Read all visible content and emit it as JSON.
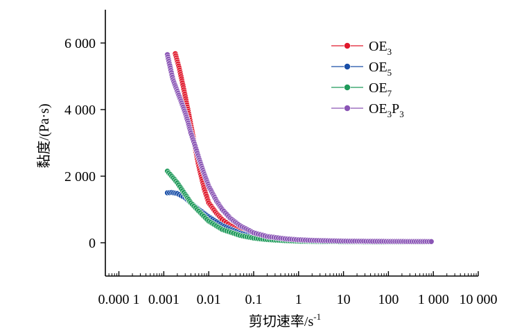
{
  "chart_data": {
    "type": "scatter",
    "xlabel": "剪切速率/s",
    "xlabel_sup": "-1",
    "ylabel": "黏度/(Pa·s)",
    "x_scale": "log",
    "xlim": [
      5e-05,
      10000
    ],
    "ylim": [
      -1000,
      7000
    ],
    "x_ticks": [
      0.0001,
      0.001,
      0.01,
      0.1,
      1,
      10,
      100,
      1000,
      10000
    ],
    "x_tick_labels": [
      "0.000 1",
      "0.001",
      "0.01",
      "0.1",
      "1",
      "10",
      "100",
      "1 000",
      "10 000"
    ],
    "y_ticks": [
      0,
      2000,
      4000,
      6000
    ],
    "y_tick_labels": [
      "0",
      "2 000",
      "4 000",
      "6 000"
    ],
    "grid": false,
    "legend_position": "top-right",
    "series": [
      {
        "name": "OE3",
        "label_main": "OE",
        "label_sub": "3",
        "color": "#e0192c",
        "x_range": [
          0.0018,
          800
        ],
        "points": [
          [
            0.0018,
            5680
          ],
          [
            0.0022,
            5250
          ],
          [
            0.0026,
            4800
          ],
          [
            0.003,
            4400
          ],
          [
            0.0035,
            3950
          ],
          [
            0.004,
            3550
          ],
          [
            0.005,
            2850
          ],
          [
            0.006,
            2300
          ],
          [
            0.008,
            1600
          ],
          [
            0.01,
            1200
          ],
          [
            0.015,
            880
          ],
          [
            0.02,
            700
          ],
          [
            0.03,
            520
          ],
          [
            0.05,
            370
          ],
          [
            0.1,
            230
          ],
          [
            0.2,
            150
          ],
          [
            0.5,
            95
          ],
          [
            1,
            70
          ],
          [
            2,
            55
          ],
          [
            5,
            42
          ],
          [
            10,
            38
          ],
          [
            50,
            32
          ],
          [
            100,
            30
          ],
          [
            300,
            28
          ],
          [
            800,
            26
          ]
        ]
      },
      {
        "name": "OE5",
        "label_main": "OE",
        "label_sub": "5",
        "color": "#1a4fa8",
        "x_range": [
          0.0012,
          800
        ],
        "points": [
          [
            0.0012,
            1500
          ],
          [
            0.0015,
            1510
          ],
          [
            0.002,
            1480
          ],
          [
            0.003,
            1350
          ],
          [
            0.004,
            1200
          ],
          [
            0.006,
            1000
          ],
          [
            0.01,
            780
          ],
          [
            0.02,
            520
          ],
          [
            0.05,
            290
          ],
          [
            0.1,
            180
          ],
          [
            0.2,
            120
          ],
          [
            0.5,
            80
          ],
          [
            1,
            60
          ],
          [
            2,
            48
          ],
          [
            5,
            38
          ],
          [
            10,
            32
          ],
          [
            50,
            28
          ],
          [
            100,
            26
          ],
          [
            300,
            25
          ],
          [
            800,
            24
          ]
        ]
      },
      {
        "name": "OE7",
        "label_main": "OE",
        "label_sub": "7",
        "color": "#1f9a5a",
        "x_range": [
          0.0012,
          800
        ],
        "points": [
          [
            0.0012,
            2150
          ],
          [
            0.0015,
            2000
          ],
          [
            0.002,
            1800
          ],
          [
            0.003,
            1450
          ],
          [
            0.004,
            1200
          ],
          [
            0.006,
            950
          ],
          [
            0.01,
            650
          ],
          [
            0.02,
            400
          ],
          [
            0.05,
            220
          ],
          [
            0.1,
            140
          ],
          [
            0.2,
            95
          ],
          [
            0.5,
            65
          ],
          [
            1,
            50
          ],
          [
            2,
            42
          ],
          [
            5,
            35
          ],
          [
            10,
            30
          ],
          [
            50,
            27
          ],
          [
            100,
            25
          ],
          [
            300,
            24
          ],
          [
            800,
            23
          ]
        ]
      },
      {
        "name": "OE3P3",
        "label_main": "OE",
        "label_sub": "3",
        "label_main2": "P",
        "label_sub2": "3",
        "color": "#8a55b5",
        "x_range": [
          0.0012,
          900
        ],
        "points": [
          [
            0.0012,
            5650
          ],
          [
            0.0014,
            5250
          ],
          [
            0.0016,
            4900
          ],
          [
            0.002,
            4550
          ],
          [
            0.0025,
            4200
          ],
          [
            0.003,
            3900
          ],
          [
            0.0035,
            3600
          ],
          [
            0.004,
            3300
          ],
          [
            0.005,
            2900
          ],
          [
            0.006,
            2550
          ],
          [
            0.008,
            2050
          ],
          [
            0.01,
            1700
          ],
          [
            0.015,
            1250
          ],
          [
            0.02,
            1000
          ],
          [
            0.03,
            740
          ],
          [
            0.05,
            510
          ],
          [
            0.1,
            300
          ],
          [
            0.2,
            190
          ],
          [
            0.5,
            120
          ],
          [
            1,
            90
          ],
          [
            2,
            72
          ],
          [
            5,
            58
          ],
          [
            10,
            50
          ],
          [
            50,
            42
          ],
          [
            100,
            40
          ],
          [
            300,
            38
          ],
          [
            900,
            36
          ]
        ]
      }
    ]
  }
}
